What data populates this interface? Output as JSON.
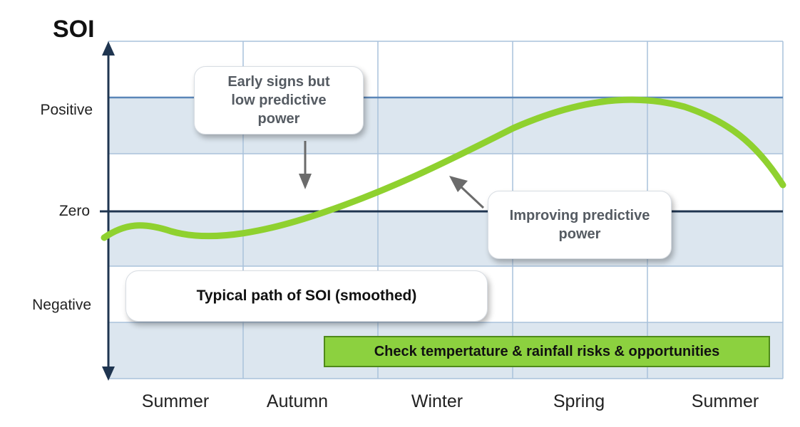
{
  "diagram": {
    "title": "SOI",
    "y_levels": [
      "Positive",
      "Zero",
      "Negative"
    ],
    "seasons": [
      "Summer",
      "Autumn",
      "Winter",
      "Spring",
      "Summer"
    ],
    "callouts": {
      "early": "Early signs but\nlow predictive\npower",
      "improving": "Improving predictive\npower",
      "typical": "Typical path of SOI  (smoothed)"
    },
    "action_box": "Check tempertature & rainfall risks & opportunities",
    "colors": {
      "grid_fill": "#dce6ef",
      "grid_line": "#a9c2dc",
      "axis": "#1f3550",
      "curve": "#8fd12f",
      "action_box": "#8cd13f"
    }
  }
}
